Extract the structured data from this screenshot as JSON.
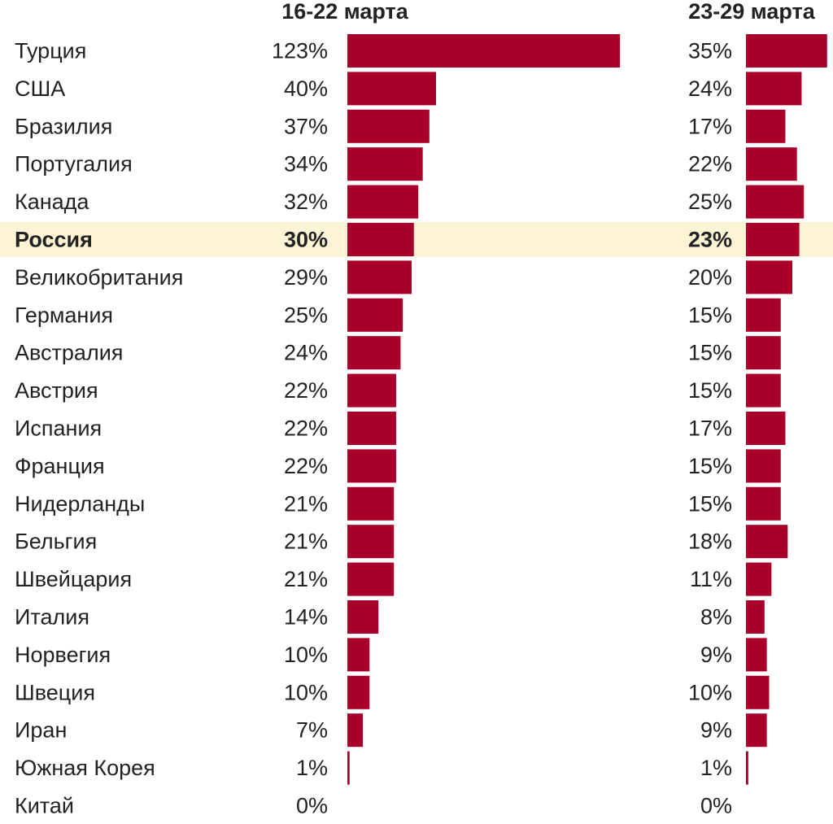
{
  "chart_data": {
    "type": "bar",
    "orientation": "horizontal",
    "bar_color": "#a8002a",
    "highlight_color": "#fdf4d6",
    "highlight_category": "Россия",
    "categories": [
      "Турция",
      "США",
      "Бразилия",
      "Португалия",
      "Канада",
      "Россия",
      "Великобритания",
      "Германия",
      "Австралия",
      "Австрия",
      "Испания",
      "Франция",
      "Нидерланды",
      "Бельгия",
      "Швейцария",
      "Италия",
      "Норвегия",
      "Швеция",
      "Иран",
      "Южная Корея",
      "Китай"
    ],
    "series": [
      {
        "name": "16-22 марта",
        "values": [
          123,
          40,
          37,
          34,
          32,
          30,
          29,
          25,
          24,
          22,
          22,
          22,
          21,
          21,
          21,
          14,
          10,
          10,
          7,
          1,
          0
        ],
        "labels": [
          "123%",
          "40%",
          "37%",
          "34%",
          "32%",
          "30%",
          "29%",
          "25%",
          "24%",
          "22%",
          "22%",
          "22%",
          "21%",
          "21%",
          "21%",
          "14%",
          "10%",
          "10%",
          "7%",
          "1%",
          "0%"
        ]
      },
      {
        "name": "23-29 марта",
        "values": [
          35,
          24,
          17,
          22,
          25,
          23,
          20,
          15,
          15,
          15,
          17,
          15,
          15,
          18,
          11,
          8,
          9,
          10,
          9,
          1,
          0
        ],
        "labels": [
          "35%",
          "24%",
          "17%",
          "22%",
          "25%",
          "23%",
          "20%",
          "15%",
          "15%",
          "15%",
          "17%",
          "15%",
          "15%",
          "18%",
          "11%",
          "8%",
          "9%",
          "10%",
          "9%",
          "1%",
          "0%"
        ]
      }
    ]
  }
}
